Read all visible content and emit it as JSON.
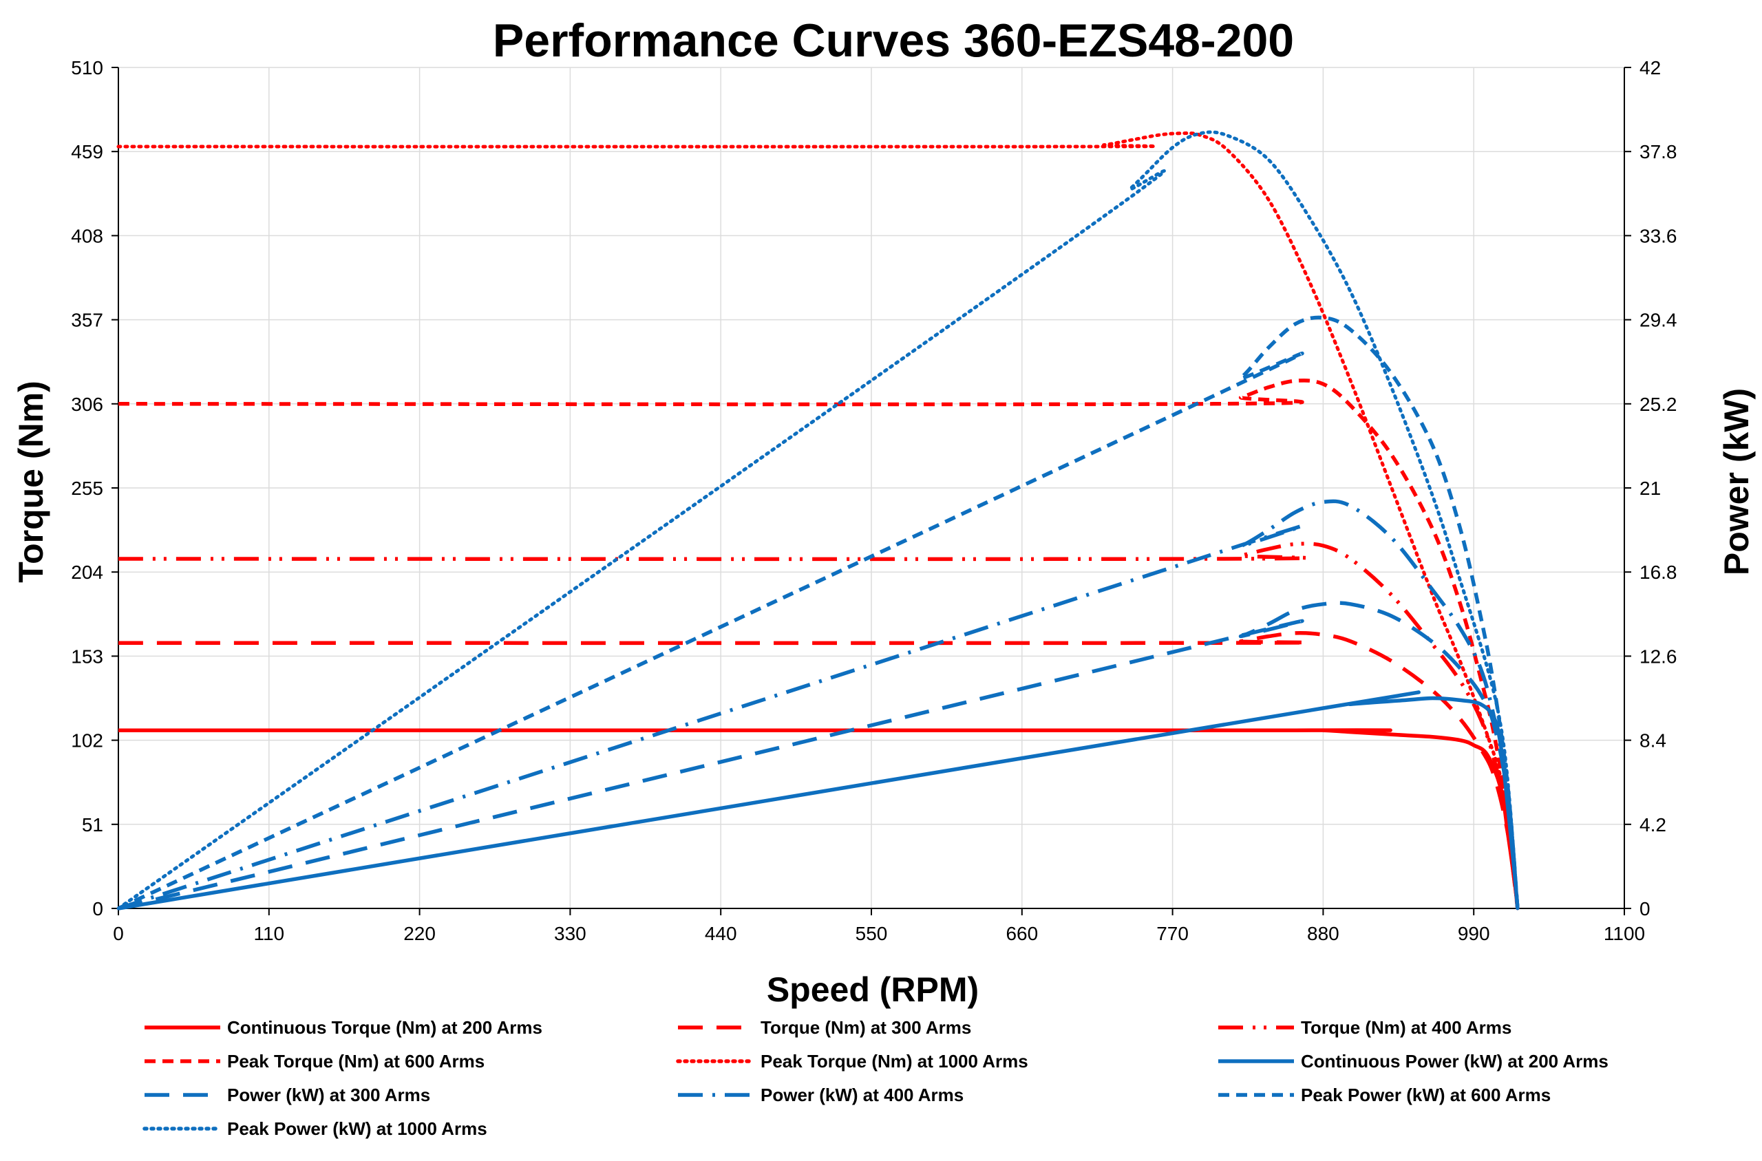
{
  "chart_data": {
    "type": "line",
    "title": "Performance Curves 360-EZS48-200",
    "xlabel": "Speed (RPM)",
    "ylabel_left": "Torque (Nm)",
    "ylabel_right": "Power (kW)",
    "xlim": [
      0,
      1100
    ],
    "ylim_left": [
      0,
      510
    ],
    "ylim_right": [
      0,
      42
    ],
    "x_ticks": [
      "0",
      "110",
      "220",
      "330",
      "440",
      "550",
      "660",
      "770",
      "880",
      "990",
      "1100"
    ],
    "y_left_ticks": [
      "0",
      "51",
      "102",
      "153",
      "204",
      "255",
      "306",
      "357",
      "408",
      "459",
      "510"
    ],
    "y_right_ticks": [
      "0",
      "4.2",
      "8.4",
      "12.6",
      "16.8",
      "21",
      "25.2",
      "29.4",
      "33.6",
      "37.8",
      "42"
    ],
    "grid": true,
    "legend_position": "bottom",
    "series": [
      {
        "name": "Continuous Torque (Nm) at 200 Arms",
        "axis": "left",
        "color": "#ff0000",
        "style": "solid",
        "points": [
          [
            0,
            108
          ],
          [
            860,
            108
          ],
          [
            880,
            108
          ],
          [
            900,
            107
          ],
          [
            940,
            105
          ],
          [
            960,
            104
          ],
          [
            980,
            102
          ],
          [
            990,
            99
          ],
          [
            1000,
            93
          ],
          [
            1010,
            72
          ],
          [
            1015,
            45
          ],
          [
            1020,
            15
          ],
          [
            1022,
            0
          ]
        ]
      },
      {
        "name": "Torque (Nm) at 300 Arms",
        "axis": "left",
        "color": "#ff0000",
        "style": "long-dash",
        "points": [
          [
            0,
            161
          ],
          [
            805,
            161
          ],
          [
            820,
            162
          ],
          [
            840,
            165
          ],
          [
            860,
            167
          ],
          [
            880,
            166
          ],
          [
            900,
            162
          ],
          [
            930,
            150
          ],
          [
            960,
            132
          ],
          [
            980,
            115
          ],
          [
            995,
            97
          ],
          [
            1005,
            80
          ],
          [
            1015,
            45
          ],
          [
            1022,
            0
          ]
        ]
      },
      {
        "name": "Torque (Nm) at 400 Arms",
        "axis": "left",
        "color": "#ff0000",
        "style": "dash-dot-dot",
        "points": [
          [
            0,
            212
          ],
          [
            805,
            212
          ],
          [
            820,
            214
          ],
          [
            840,
            218
          ],
          [
            860,
            221
          ],
          [
            880,
            220
          ],
          [
            900,
            212
          ],
          [
            930,
            190
          ],
          [
            960,
            160
          ],
          [
            980,
            138
          ],
          [
            995,
            115
          ],
          [
            1005,
            90
          ],
          [
            1015,
            52
          ],
          [
            1022,
            0
          ]
        ]
      },
      {
        "name": "Peak Torque (Nm) at 600 Arms",
        "axis": "left",
        "color": "#ff0000",
        "style": "short-dash",
        "points": [
          [
            0,
            306
          ],
          [
            800,
            306
          ],
          [
            820,
            310
          ],
          [
            840,
            316
          ],
          [
            860,
            320
          ],
          [
            880,
            318
          ],
          [
            900,
            305
          ],
          [
            930,
            275
          ],
          [
            960,
            230
          ],
          [
            980,
            185
          ],
          [
            995,
            140
          ],
          [
            1005,
            105
          ],
          [
            1015,
            55
          ],
          [
            1022,
            0
          ]
        ]
      },
      {
        "name": "Peak Torque (Nm) at 1000 Arms",
        "axis": "left",
        "color": "#ff0000",
        "style": "dotted",
        "points": [
          [
            0,
            462
          ],
          [
            700,
            462
          ],
          [
            720,
            463
          ],
          [
            740,
            466
          ],
          [
            760,
            469
          ],
          [
            775,
            470
          ],
          [
            790,
            469
          ],
          [
            810,
            460
          ],
          [
            840,
            430
          ],
          [
            870,
            380
          ],
          [
            900,
            320
          ],
          [
            930,
            255
          ],
          [
            960,
            190
          ],
          [
            980,
            150
          ],
          [
            1000,
            105
          ],
          [
            1010,
            78
          ],
          [
            1016,
            45
          ],
          [
            1022,
            0
          ]
        ]
      },
      {
        "name": "Continuous Power (kW) at 200 Arms",
        "axis": "right",
        "color": "#0e6fbf",
        "style": "solid",
        "points": [
          [
            0,
            0
          ],
          [
            880,
            10.0
          ],
          [
            900,
            10.2
          ],
          [
            940,
            10.4
          ],
          [
            960,
            10.5
          ],
          [
            980,
            10.4
          ],
          [
            995,
            10.2
          ],
          [
            1005,
            9.5
          ],
          [
            1010,
            8.0
          ],
          [
            1015,
            5.0
          ],
          [
            1020,
            1.6
          ],
          [
            1022,
            0
          ]
        ]
      },
      {
        "name": "Power (kW) at 300 Arms",
        "axis": "right",
        "color": "#0e6fbf",
        "style": "long-dash",
        "points": [
          [
            0,
            0
          ],
          [
            800,
            13.3
          ],
          [
            820,
            13.6
          ],
          [
            840,
            14.2
          ],
          [
            860,
            14.9
          ],
          [
            880,
            15.2
          ],
          [
            900,
            15.2
          ],
          [
            930,
            14.6
          ],
          [
            960,
            13.3
          ],
          [
            980,
            12.0
          ],
          [
            995,
            10.7
          ],
          [
            1005,
            9.1
          ],
          [
            1015,
            5.5
          ],
          [
            1022,
            0
          ]
        ]
      },
      {
        "name": "Power (kW) at 400 Arms",
        "axis": "right",
        "color": "#0e6fbf",
        "style": "dash-dot",
        "points": [
          [
            0,
            0
          ],
          [
            800,
            17.7
          ],
          [
            820,
            18.1
          ],
          [
            840,
            18.9
          ],
          [
            860,
            19.8
          ],
          [
            880,
            20.3
          ],
          [
            900,
            20.1
          ],
          [
            930,
            18.5
          ],
          [
            960,
            15.9
          ],
          [
            980,
            14.0
          ],
          [
            995,
            12.0
          ],
          [
            1005,
            9.5
          ],
          [
            1015,
            5.8
          ],
          [
            1022,
            0
          ]
        ]
      },
      {
        "name": "Peak Power (kW) at 600 Arms",
        "axis": "right",
        "color": "#0e6fbf",
        "style": "short-dash",
        "points": [
          [
            0,
            0
          ],
          [
            800,
            25.6
          ],
          [
            820,
            26.5
          ],
          [
            840,
            28.0
          ],
          [
            860,
            29.2
          ],
          [
            880,
            29.5
          ],
          [
            900,
            28.9
          ],
          [
            930,
            26.7
          ],
          [
            960,
            23.1
          ],
          [
            980,
            19.0
          ],
          [
            995,
            14.6
          ],
          [
            1005,
            11.0
          ],
          [
            1015,
            6.0
          ],
          [
            1022,
            0
          ]
        ]
      },
      {
        "name": "Peak Power (kW) at 1000 Arms",
        "axis": "right",
        "color": "#0e6fbf",
        "style": "dotted",
        "points": [
          [
            0,
            0
          ],
          [
            700,
            33.6
          ],
          [
            740,
            36.0
          ],
          [
            770,
            38.0
          ],
          [
            790,
            38.7
          ],
          [
            810,
            38.6
          ],
          [
            840,
            37.4
          ],
          [
            870,
            34.5
          ],
          [
            900,
            30.8
          ],
          [
            930,
            26.0
          ],
          [
            960,
            20.6
          ],
          [
            980,
            16.4
          ],
          [
            1000,
            12.0
          ],
          [
            1010,
            9.0
          ],
          [
            1016,
            5.5
          ],
          [
            1022,
            0
          ]
        ]
      }
    ]
  }
}
